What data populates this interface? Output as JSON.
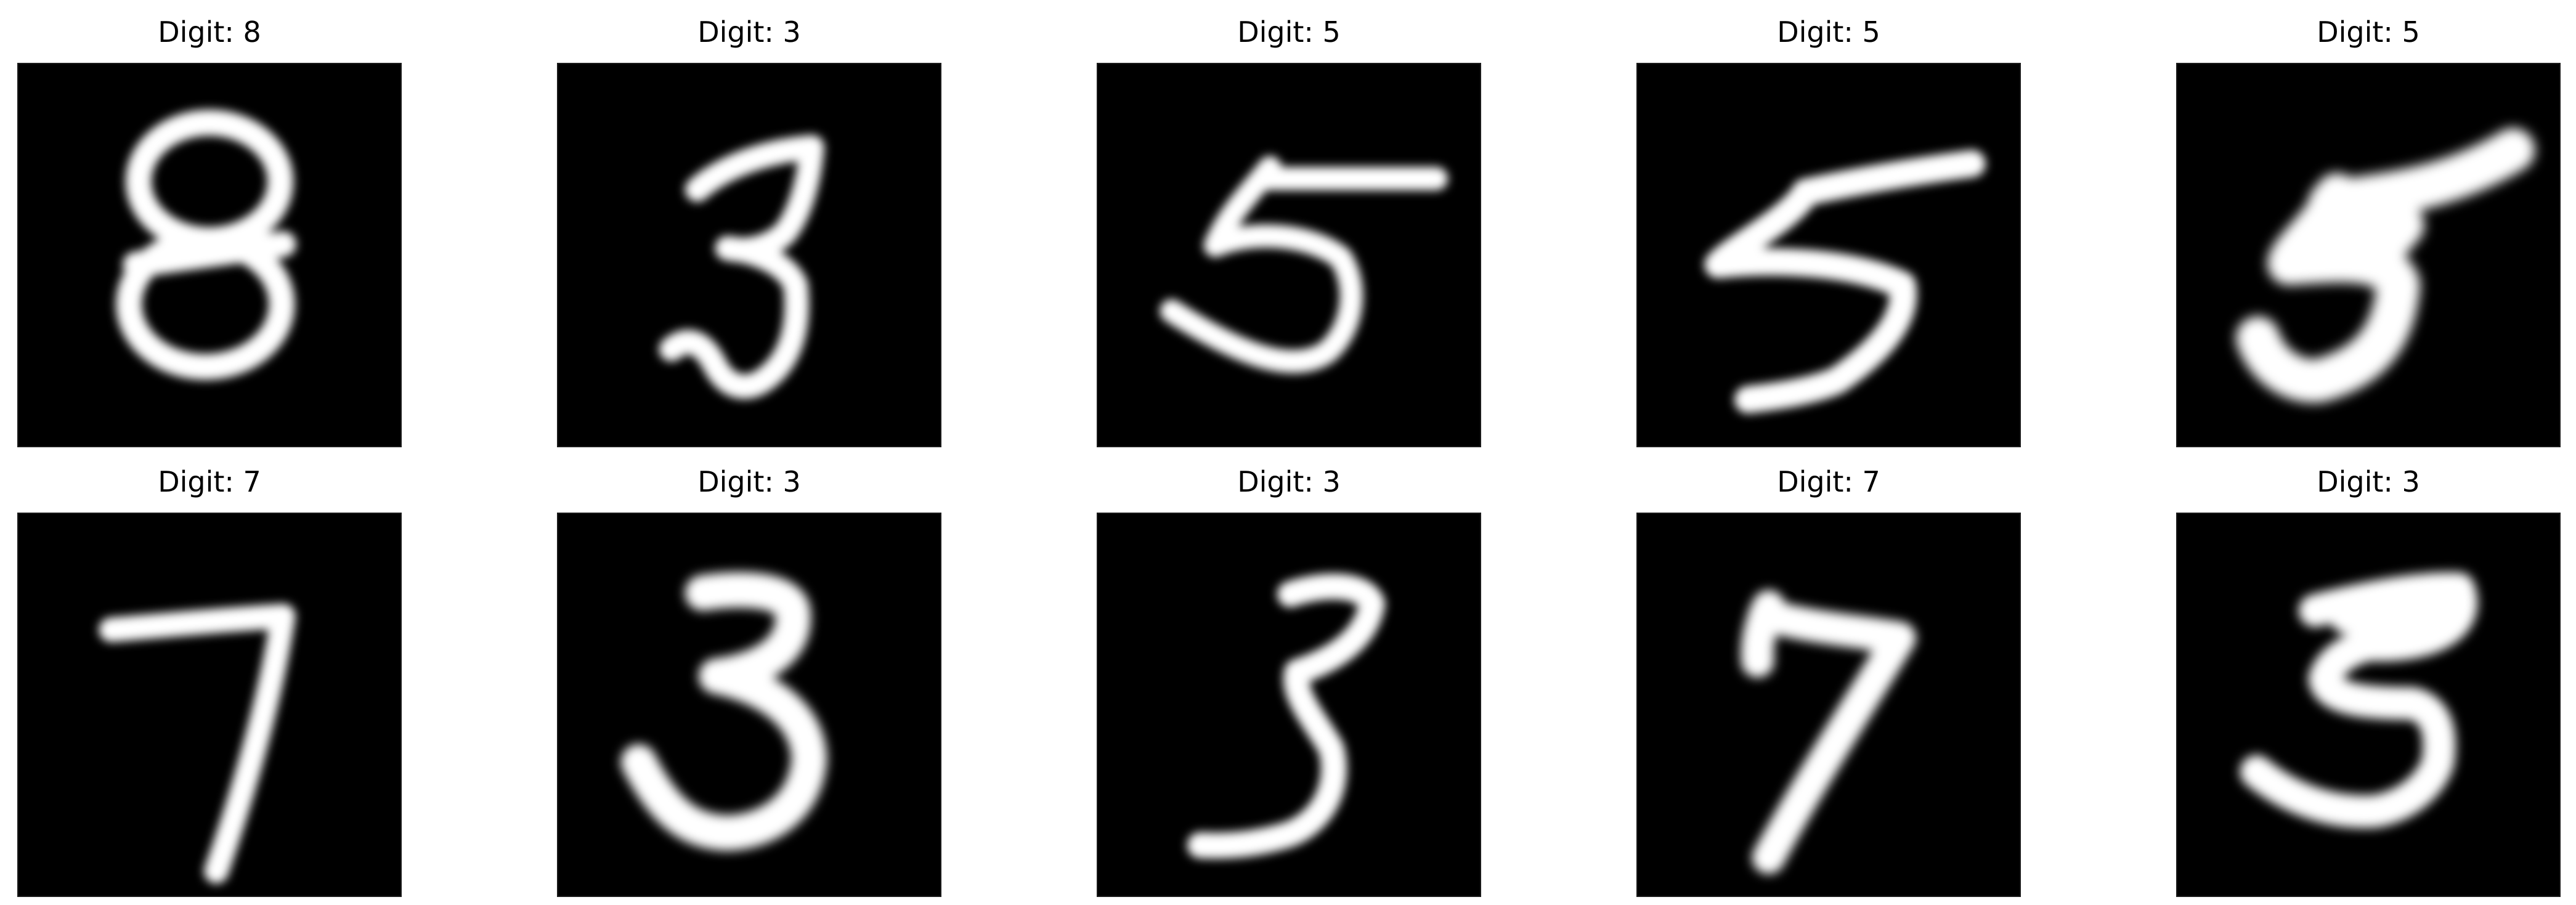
{
  "panels": [
    {
      "title": "Digit: 8",
      "digit": "8",
      "icon": "handwritten-digit-8-image"
    },
    {
      "title": "Digit: 3",
      "digit": "3",
      "icon": "handwritten-digit-3-image"
    },
    {
      "title": "Digit: 5",
      "digit": "5",
      "icon": "handwritten-digit-5-image"
    },
    {
      "title": "Digit: 5",
      "digit": "5",
      "icon": "handwritten-digit-5-image"
    },
    {
      "title": "Digit: 5",
      "digit": "5",
      "icon": "handwritten-digit-5-image"
    },
    {
      "title": "Digit: 7",
      "digit": "7",
      "icon": "handwritten-digit-7-image"
    },
    {
      "title": "Digit: 3",
      "digit": "3",
      "icon": "handwritten-digit-3-image"
    },
    {
      "title": "Digit: 3",
      "digit": "3",
      "icon": "handwritten-digit-3-image"
    },
    {
      "title": "Digit: 7",
      "digit": "7",
      "icon": "handwritten-digit-7-image"
    },
    {
      "title": "Digit: 3",
      "digit": "3",
      "icon": "handwritten-digit-3-image"
    }
  ],
  "colors": {
    "image_background": "#000000",
    "stroke": "#ffffff",
    "title_text": "#000000"
  }
}
